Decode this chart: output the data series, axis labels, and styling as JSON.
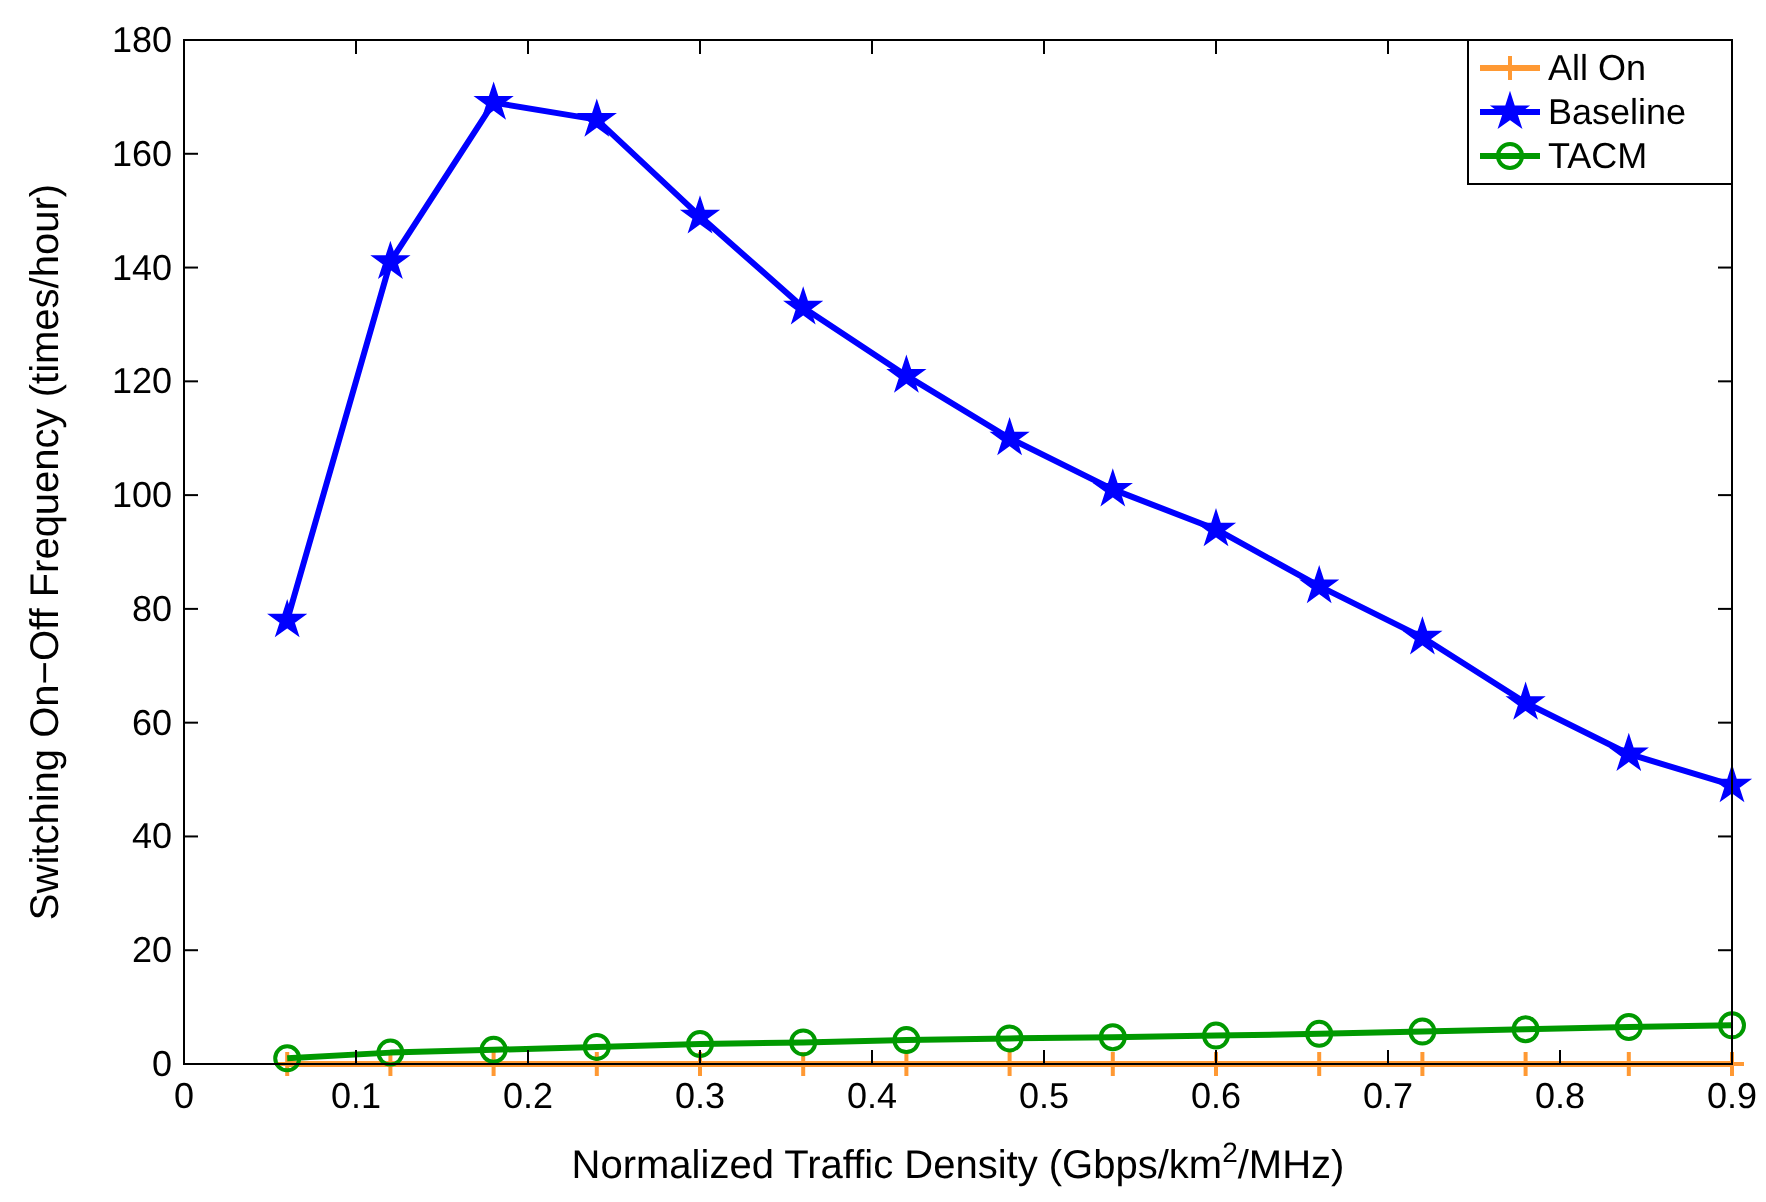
{
  "chart_data": {
    "type": "line",
    "xlabel": "Normalized Traffic Density (Gbps/km$^{2}$/MHz)",
    "ylabel": "Switching On−Off Frequency (times/hour)",
    "x": [
      0.06,
      0.12,
      0.18,
      0.24,
      0.3,
      0.36,
      0.42,
      0.48,
      0.54,
      0.6,
      0.66,
      0.72,
      0.78,
      0.84,
      0.9
    ],
    "series": [
      {
        "name": "All On",
        "color": "#ff9933",
        "marker": "cross",
        "values": [
          0,
          0,
          0,
          0,
          0,
          0,
          0,
          0,
          0,
          0,
          0,
          0,
          0,
          0,
          0
        ]
      },
      {
        "name": "Baseline",
        "color": "#0000ff",
        "marker": "star",
        "values": [
          78,
          141,
          169,
          166,
          149,
          133,
          121,
          110,
          101,
          94,
          84,
          75,
          63.5,
          54.5,
          49
        ]
      },
      {
        "name": "TACM",
        "color": "#009900",
        "marker": "circle",
        "values": [
          1,
          2,
          2.5,
          3,
          3.5,
          3.8,
          4.2,
          4.5,
          4.7,
          5,
          5.3,
          5.7,
          6.1,
          6.5,
          6.8
        ]
      }
    ],
    "xlim": [
      0,
      0.9
    ],
    "xticks": [
      0,
      0.1,
      0.2,
      0.3,
      0.4,
      0.5,
      0.6,
      0.7,
      0.8,
      0.9
    ],
    "ylim": [
      0,
      180
    ],
    "yticks": [
      0,
      20,
      40,
      60,
      80,
      100,
      120,
      140,
      160,
      180
    ],
    "grid": false,
    "legend": "top right",
    "line_style": "solid"
  }
}
